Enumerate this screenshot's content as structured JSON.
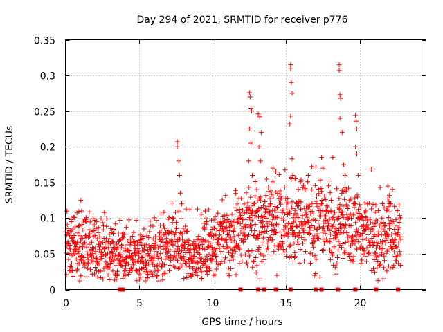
{
  "chart_data": {
    "type": "scatter",
    "title": "Day 294 of 2021, SRMTID for receiver p776",
    "xlabel": "GPS time / hours",
    "ylabel": "SRMTID / TECUs",
    "xlim": [
      0,
      24.5
    ],
    "ylim": [
      0,
      0.35
    ],
    "xticks": [
      0,
      5,
      10,
      15,
      20
    ],
    "yticks": [
      0,
      0.05,
      0.1,
      0.15,
      0.2,
      0.25,
      0.3,
      0.35
    ],
    "xtick_labels": [
      "0",
      "5",
      "10",
      "15",
      "20"
    ],
    "ytick_labels": [
      "0",
      "0.05",
      "0.1",
      "0.15",
      "0.2",
      "0.25",
      "0.3",
      "0.35"
    ],
    "grid": true,
    "marker": "+",
    "color": "#ff0000",
    "trend": [
      [
        0.0,
        0.055
      ],
      [
        1.0,
        0.058
      ],
      [
        2.0,
        0.055
      ],
      [
        3.0,
        0.05
      ],
      [
        4.0,
        0.044
      ],
      [
        5.0,
        0.047
      ],
      [
        6.0,
        0.052
      ],
      [
        7.0,
        0.06
      ],
      [
        8.0,
        0.063
      ],
      [
        9.0,
        0.045
      ],
      [
        10.0,
        0.058
      ],
      [
        11.0,
        0.075
      ],
      [
        12.0,
        0.085
      ],
      [
        13.0,
        0.095
      ],
      [
        14.0,
        0.098
      ],
      [
        15.0,
        0.095
      ],
      [
        16.0,
        0.092
      ],
      [
        17.0,
        0.09
      ],
      [
        18.0,
        0.088
      ],
      [
        19.0,
        0.092
      ],
      [
        20.0,
        0.075
      ],
      [
        21.0,
        0.07
      ],
      [
        22.0,
        0.075
      ],
      [
        22.8,
        0.07
      ]
    ],
    "notable_points": [
      [
        0.4,
        0.095
      ],
      [
        1.05,
        0.125
      ],
      [
        1.1,
        0.11
      ],
      [
        3.7,
        0.097
      ],
      [
        7.6,
        0.207
      ],
      [
        7.6,
        0.2
      ],
      [
        7.7,
        0.18
      ],
      [
        7.75,
        0.16
      ],
      [
        7.8,
        0.135
      ],
      [
        7.9,
        0.12
      ],
      [
        9.5,
        0.11
      ],
      [
        9.6,
        0.095
      ],
      [
        12.5,
        0.276
      ],
      [
        12.55,
        0.27
      ],
      [
        12.6,
        0.254
      ],
      [
        12.65,
        0.25
      ],
      [
        12.5,
        0.225
      ],
      [
        12.6,
        0.205
      ],
      [
        12.45,
        0.18
      ],
      [
        12.7,
        0.16
      ],
      [
        13.1,
        0.246
      ],
      [
        13.2,
        0.242
      ],
      [
        13.3,
        0.22
      ],
      [
        13.15,
        0.2
      ],
      [
        13.25,
        0.18
      ],
      [
        13.0,
        0.14
      ],
      [
        14.1,
        0.17
      ],
      [
        14.3,
        0.165
      ],
      [
        15.3,
        0.315
      ],
      [
        15.3,
        0.31
      ],
      [
        15.35,
        0.29
      ],
      [
        15.4,
        0.275
      ],
      [
        15.3,
        0.243
      ],
      [
        15.25,
        0.232
      ],
      [
        15.4,
        0.183
      ],
      [
        15.45,
        0.16
      ],
      [
        15.6,
        0.155
      ],
      [
        16.5,
        0.16
      ],
      [
        17.4,
        0.185
      ],
      [
        17.5,
        0.17
      ],
      [
        18.6,
        0.315
      ],
      [
        18.6,
        0.307
      ],
      [
        18.65,
        0.273
      ],
      [
        18.7,
        0.268
      ],
      [
        18.65,
        0.24
      ],
      [
        18.8,
        0.22
      ],
      [
        18.9,
        0.175
      ],
      [
        19.0,
        0.16
      ],
      [
        19.7,
        0.244
      ],
      [
        19.75,
        0.236
      ],
      [
        19.8,
        0.225
      ],
      [
        19.7,
        0.2
      ],
      [
        19.8,
        0.19
      ],
      [
        19.9,
        0.16
      ],
      [
        21.9,
        0.145
      ],
      [
        22.0,
        0.132
      ],
      [
        22.1,
        0.12
      ]
    ],
    "zero_markers_x": [
      3.7,
      3.9,
      11.9,
      13.1,
      13.5,
      14.3,
      15.3,
      17.0,
      17.4,
      18.5,
      19.7,
      21.1,
      22.6
    ]
  }
}
